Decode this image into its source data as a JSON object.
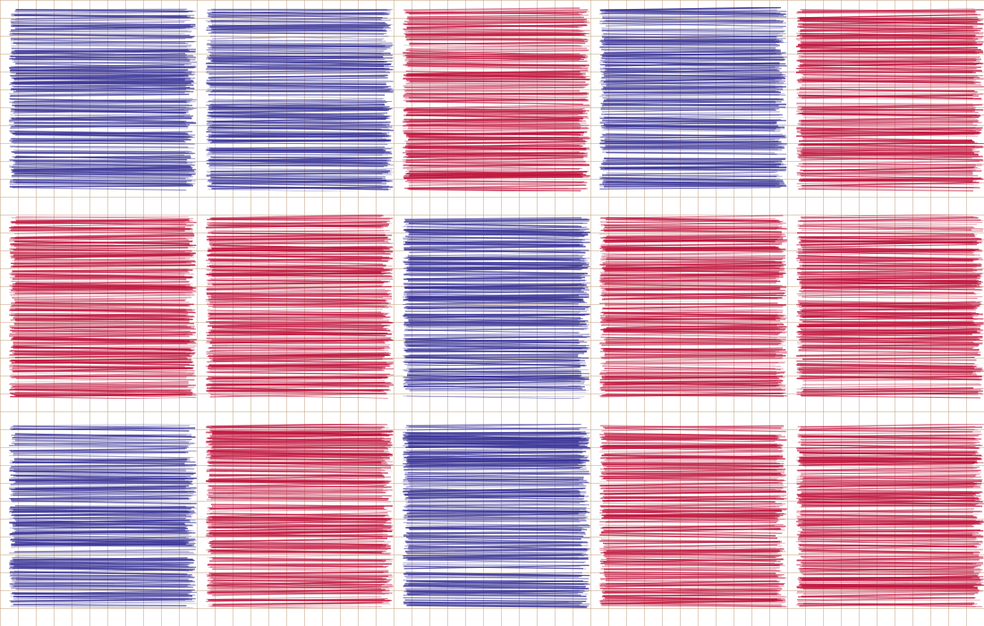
{
  "colors": {
    "blue": "#3b3597",
    "red": "#c0143c",
    "grid": "#d2b898"
  },
  "rows": [
    [
      "blue",
      "blue",
      "red",
      "blue",
      "red"
    ],
    [
      "red",
      "red",
      "blue",
      "red",
      "red"
    ],
    [
      "blue",
      "red",
      "blue",
      "red",
      "red"
    ]
  ]
}
